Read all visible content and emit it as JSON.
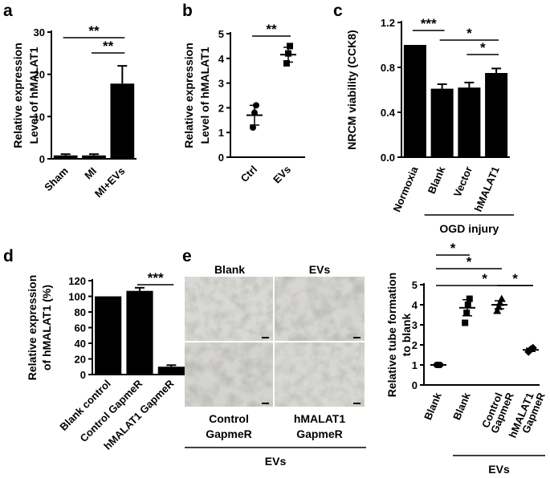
{
  "panels": [
    {
      "id": "a",
      "label": "a",
      "chart_data": {
        "type": "bar",
        "ylabel_lines": [
          "Relative expression",
          "Level of hMALAT1"
        ],
        "categories": [
          "Sham",
          "MI",
          "MI+EVs"
        ],
        "values": [
          0.8,
          0.8,
          17.8
        ],
        "errors": [
          0.3,
          0.3,
          4.2
        ],
        "ylim": [
          0,
          30
        ],
        "yticks": [
          0,
          10,
          20,
          30
        ],
        "significance": [
          {
            "from": 0,
            "to": 2,
            "label": "**"
          },
          {
            "from": 1,
            "to": 2,
            "label": "**"
          }
        ]
      }
    },
    {
      "id": "b",
      "label": "b",
      "chart_data": {
        "type": "scatter",
        "ylabel_lines": [
          "Relative expression",
          "Level of hMALAT1"
        ],
        "categories": [
          "Ctrl",
          "EVs"
        ],
        "points": [
          [
            1.2,
            1.8,
            2.1
          ],
          [
            3.8,
            4.2,
            4.5
          ]
        ],
        "means": [
          1.7,
          4.15
        ],
        "sem": [
          0.4,
          0.3
        ],
        "ylim": [
          0,
          5
        ],
        "yticks": [
          0,
          1,
          2,
          3,
          4,
          5
        ],
        "significance": [
          {
            "from": 0,
            "to": 1,
            "label": "**"
          }
        ]
      }
    },
    {
      "id": "c",
      "label": "c",
      "chart_data": {
        "type": "bar",
        "ylabel": "NRCM viability (CCK8)",
        "categories": [
          "Normoxia",
          "Blank",
          "Vector",
          "hMALAT1"
        ],
        "values": [
          1.0,
          0.61,
          0.62,
          0.75
        ],
        "errors": [
          0,
          0.04,
          0.045,
          0.04
        ],
        "ylim": [
          0,
          1.2
        ],
        "yticks": [
          "0.0",
          "0.4",
          "0.8",
          "1.2"
        ],
        "group_label": "OGD injury",
        "significance": [
          {
            "from": 0,
            "to": 1,
            "label": "***"
          },
          {
            "from": 1,
            "to": 3,
            "label": "*"
          },
          {
            "from": 2,
            "to": 3,
            "label": "*"
          }
        ]
      }
    },
    {
      "id": "d",
      "label": "d",
      "chart_data": {
        "type": "bar",
        "ylabel_lines": [
          "Relative expression",
          "of hMALAT1 (%)"
        ],
        "categories": [
          "Blank control",
          "Control GapmeR",
          "hMALAT1 GapmeR"
        ],
        "values": [
          100,
          107,
          10
        ],
        "errors": [
          0,
          4,
          2
        ],
        "ylim": [
          0,
          120
        ],
        "yticks": [
          0,
          20,
          40,
          60,
          80,
          100,
          120
        ],
        "significance": [
          {
            "from": 1,
            "to": 2,
            "label": "***"
          }
        ]
      }
    },
    {
      "id": "e",
      "label": "e",
      "images": {
        "top_labels": [
          "Blank",
          "EVs"
        ],
        "bottom_labels": [
          [
            "Control",
            "GapmeR"
          ],
          [
            "hMALAT1",
            "GapmeR"
          ]
        ],
        "group_label": "EVs"
      },
      "chart_data": {
        "type": "scatter",
        "ylabel_lines": [
          "Relative tube formation",
          "to blank"
        ],
        "categories": [
          "Blank",
          "Blank",
          [
            "Control",
            "GapmeR"
          ],
          [
            "hMALAT1",
            "GapmeR"
          ]
        ],
        "points": [
          [
            1.0,
            1.0,
            1.0,
            1.0
          ],
          [
            3.1,
            3.6,
            4.0,
            4.3
          ],
          [
            3.7,
            3.9,
            4.1,
            4.3
          ],
          [
            1.65,
            1.75,
            1.8,
            1.85
          ]
        ],
        "means": [
          1.0,
          3.85,
          4.0,
          1.75
        ],
        "sem": [
          0.02,
          0.4,
          0.2,
          0.08
        ],
        "ylim": [
          0,
          5
        ],
        "yticks": [
          0,
          1,
          2,
          3,
          4,
          5
        ],
        "group_label": "EVs",
        "significance": [
          {
            "from": 0,
            "to": 1,
            "label": "*"
          },
          {
            "from": 0,
            "to": 2,
            "label": "*"
          },
          {
            "from": 0,
            "to": 3,
            "label": "*"
          },
          {
            "from": 2,
            "to": 3,
            "label": "*"
          }
        ]
      }
    }
  ]
}
